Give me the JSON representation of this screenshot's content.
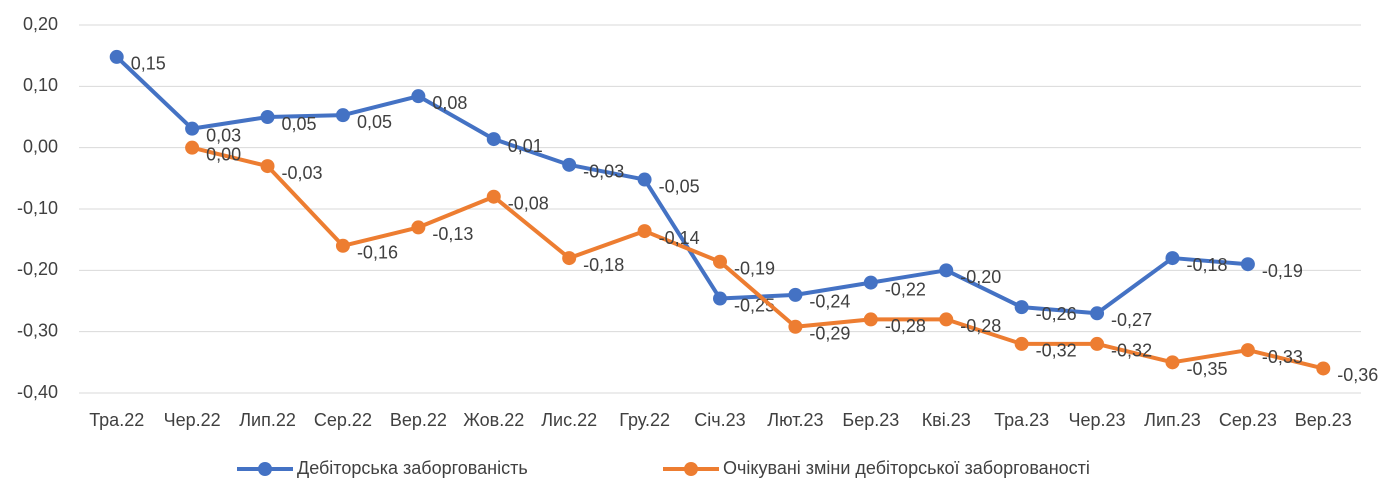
{
  "chart_data": {
    "type": "line",
    "categories": [
      "Тра.22",
      "Чер.22",
      "Лип.22",
      "Сер.22",
      "Вер.22",
      "Жов.22",
      "Лис.22",
      "Гру.22",
      "Січ.23",
      "Лют.23",
      "Бер.23",
      "Кві.23",
      "Тра.23",
      "Чер.23",
      "Лип.23",
      "Сер.23",
      "Вер.23"
    ],
    "series": [
      {
        "name": "Дебіторська заборгованість",
        "color": "#4472c4",
        "values": [
          0.148,
          0.031,
          0.05,
          0.053,
          0.084,
          0.014,
          -0.028,
          -0.052,
          -0.246,
          -0.24,
          -0.22,
          -0.2,
          -0.26,
          -0.27,
          -0.18,
          -0.19,
          null
        ],
        "value_labels": [
          "0,15",
          "0,03",
          "0,05",
          "0,05",
          "0,08",
          "0,01",
          "-0,03",
          "-0,05",
          "-0,25",
          "-0,24",
          "-0,22",
          "-0,20",
          "-0,26",
          "-0,27",
          "-0,18",
          "-0,19",
          null
        ]
      },
      {
        "name": "Очікувані зміни дебіторської заборгованості",
        "color": "#ed7d31",
        "values": [
          null,
          0,
          -0.03,
          -0.16,
          -0.13,
          -0.08,
          -0.18,
          -0.136,
          -0.186,
          -0.292,
          -0.28,
          -0.28,
          -0.32,
          -0.32,
          -0.35,
          -0.33,
          -0.36
        ],
        "value_labels": [
          null,
          "0,00",
          "-0,03",
          "-0,16",
          "-0,13",
          "-0,08",
          "-0,18",
          "-0,14",
          "-0,19",
          "-0,29",
          "-0,28",
          "-0,28",
          "-0,32",
          "-0,32",
          "-0,35",
          "-0,33",
          "-0,36"
        ]
      }
    ],
    "ylim": [
      -0.4,
      0.2
    ],
    "yticks": [
      {
        "value": -0.4,
        "label": "-0,40"
      },
      {
        "value": -0.3,
        "label": "-0,30"
      },
      {
        "value": -0.2,
        "label": "-0,20"
      },
      {
        "value": -0.1,
        "label": "-0,10"
      },
      {
        "value": 0,
        "label": "0,00"
      },
      {
        "value": 0.1,
        "label": "0,10"
      },
      {
        "value": 0.2,
        "label": "0,20"
      }
    ],
    "grid": true,
    "legend": "bottom"
  }
}
